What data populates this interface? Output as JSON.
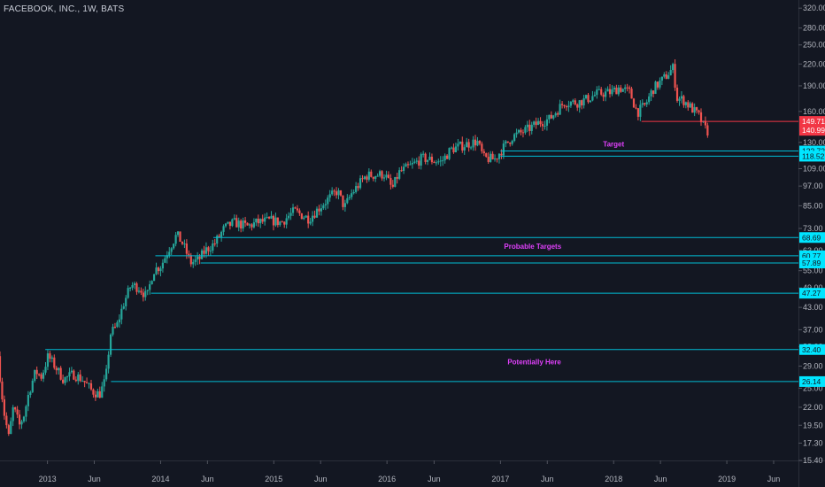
{
  "header": {
    "symbol": "FACEBOOK, INC., 1W, BATS"
  },
  "colors": {
    "background": "#131722",
    "up": "#26a69a",
    "down": "#ef5350",
    "level_line": "#00bcd4",
    "level_box": "#00e5ff",
    "price_line": "#f23645",
    "annotation": "#e040fb",
    "axis_text": "#b2b5be"
  },
  "chart_data": {
    "type": "candlestick",
    "title": "FACEBOOK, INC., 1W, BATS",
    "scale": "log",
    "ylim": [
      15.4,
      330
    ],
    "x_range": [
      "2012-08-01",
      "2019-08-20"
    ],
    "y_ticks": [
      "320.00",
      "280.00",
      "250.00",
      "220.00",
      "190.00",
      "160.00",
      "130.00",
      "109.00",
      "97.00",
      "85.00",
      "73.00",
      "63.00",
      "55.00",
      "49.00",
      "43.00",
      "37.00",
      "33.00",
      "29.00",
      "25.00",
      "22.00",
      "19.50",
      "17.30",
      "15.40"
    ],
    "x_ticks": [
      {
        "label": "2013",
        "date": "2013-01-01"
      },
      {
        "label": "Jun",
        "date": "2013-06-01"
      },
      {
        "label": "2014",
        "date": "2014-01-01"
      },
      {
        "label": "Jun",
        "date": "2014-06-01"
      },
      {
        "label": "2015",
        "date": "2015-01-01"
      },
      {
        "label": "Jun",
        "date": "2015-06-01"
      },
      {
        "label": "2016",
        "date": "2016-01-01"
      },
      {
        "label": "Jun",
        "date": "2016-06-01"
      },
      {
        "label": "2017",
        "date": "2017-01-01"
      },
      {
        "label": "Jun",
        "date": "2017-06-01"
      },
      {
        "label": "2018",
        "date": "2018-01-01"
      },
      {
        "label": "Jun",
        "date": "2018-06-01"
      },
      {
        "label": "2019",
        "date": "2019-01-01"
      },
      {
        "label": "Jun",
        "date": "2019-06-01"
      }
    ],
    "price_path": [
      [
        "2012-08-01",
        31.0
      ],
      [
        "2012-08-20",
        21.5
      ],
      [
        "2012-09-05",
        18.0
      ],
      [
        "2012-09-20",
        22.0
      ],
      [
        "2012-10-10",
        19.5
      ],
      [
        "2012-10-25",
        21.0
      ],
      [
        "2012-11-10",
        24.5
      ],
      [
        "2012-12-01",
        28.0
      ],
      [
        "2012-12-20",
        27.0
      ],
      [
        "2013-01-10",
        31.0
      ],
      [
        "2013-02-01",
        29.0
      ],
      [
        "2013-03-01",
        26.5
      ],
      [
        "2013-04-01",
        27.5
      ],
      [
        "2013-05-01",
        26.5
      ],
      [
        "2013-06-01",
        24.5
      ],
      [
        "2013-06-25",
        24.0
      ],
      [
        "2013-07-15",
        26.5
      ],
      [
        "2013-07-30",
        36.0
      ],
      [
        "2013-08-20",
        38.0
      ],
      [
        "2013-09-10",
        44.0
      ],
      [
        "2013-10-05",
        50.0
      ],
      [
        "2013-11-01",
        49.0
      ],
      [
        "2013-11-25",
        46.0
      ],
      [
        "2013-12-15",
        55.0
      ],
      [
        "2014-01-10",
        57.0
      ],
      [
        "2014-02-01",
        63.0
      ],
      [
        "2014-03-01",
        70.0
      ],
      [
        "2014-03-20",
        66.0
      ],
      [
        "2014-04-15",
        58.0
      ],
      [
        "2014-05-10",
        59.0
      ],
      [
        "2014-06-01",
        63.0
      ],
      [
        "2014-07-01",
        66.0
      ],
      [
        "2014-08-01",
        73.0
      ],
      [
        "2014-09-01",
        76.0
      ],
      [
        "2014-10-15",
        74.0
      ],
      [
        "2014-11-15",
        76.0
      ],
      [
        "2015-01-01",
        77.0
      ],
      [
        "2015-02-01",
        76.0
      ],
      [
        "2015-03-15",
        82.0
      ],
      [
        "2015-05-01",
        78.0
      ],
      [
        "2015-06-15",
        86.0
      ],
      [
        "2015-08-01",
        94.0
      ],
      [
        "2015-08-24",
        84.0
      ],
      [
        "2015-09-15",
        92.0
      ],
      [
        "2015-11-01",
        104.0
      ],
      [
        "2016-01-01",
        105.0
      ],
      [
        "2016-01-25",
        95.0
      ],
      [
        "2016-02-15",
        106.0
      ],
      [
        "2016-04-01",
        112.0
      ],
      [
        "2016-05-01",
        117.0
      ],
      [
        "2016-07-01",
        114.0
      ],
      [
        "2016-08-01",
        124.0
      ],
      [
        "2016-09-15",
        128.0
      ],
      [
        "2016-10-25",
        131.0
      ],
      [
        "2016-11-15",
        117.0
      ],
      [
        "2016-12-20",
        116.0
      ],
      [
        "2017-01-10",
        123.0
      ],
      [
        "2017-02-15",
        135.0
      ],
      [
        "2017-04-01",
        141.0
      ],
      [
        "2017-05-15",
        149.0
      ],
      [
        "2017-06-15",
        152.0
      ],
      [
        "2017-08-01",
        170.0
      ],
      [
        "2017-09-15",
        170.0
      ],
      [
        "2017-10-15",
        174.0
      ],
      [
        "2017-11-15",
        180.0
      ],
      [
        "2018-01-01",
        182.0
      ],
      [
        "2018-01-25",
        188.0
      ],
      [
        "2018-03-01",
        182.0
      ],
      [
        "2018-03-25",
        159.0
      ],
      [
        "2018-04-20",
        167.0
      ],
      [
        "2018-05-15",
        186.0
      ],
      [
        "2018-06-20",
        200.0
      ],
      [
        "2018-07-20",
        215.0
      ],
      [
        "2018-07-30",
        175.0
      ],
      [
        "2018-08-20",
        173.0
      ],
      [
        "2018-09-15",
        164.0
      ],
      [
        "2018-10-10",
        155.0
      ],
      [
        "2018-10-25",
        145.0
      ],
      [
        "2018-11-05",
        140.0
      ]
    ],
    "levels": [
      {
        "value": 149.71,
        "label": "149.71",
        "kind": "price",
        "start": "2018-04-01"
      },
      {
        "value": 122.72,
        "label": "122.72",
        "kind": "support",
        "start": "2017-01-01"
      },
      {
        "value": 118.52,
        "label": "118.52",
        "kind": "support",
        "start": "2017-01-01"
      },
      {
        "value": 68.69,
        "label": "68.69",
        "kind": "support",
        "start": "2014-06-20"
      },
      {
        "value": 60.77,
        "label": "60.77",
        "kind": "support",
        "start": "2013-12-15"
      },
      {
        "value": 57.89,
        "label": "57.89",
        "kind": "support",
        "start": "2014-05-10"
      },
      {
        "value": 47.27,
        "label": "47.27",
        "kind": "support",
        "start": "2013-12-01"
      },
      {
        "value": 32.4,
        "label": "32.40",
        "kind": "support",
        "start": "2012-12-25"
      },
      {
        "value": 26.14,
        "label": "26.14",
        "kind": "support",
        "start": "2013-07-25"
      }
    ],
    "last_price": {
      "value": 140.99,
      "label": "140.99"
    },
    "annotations": [
      {
        "text": "Target",
        "date": "2018-01-01",
        "value": 126.5
      },
      {
        "text": "Probable Targets",
        "date": "2017-04-15",
        "value": 63.6
      },
      {
        "text": "Potentially Here",
        "date": "2017-04-20",
        "value": 29.3
      }
    ]
  }
}
